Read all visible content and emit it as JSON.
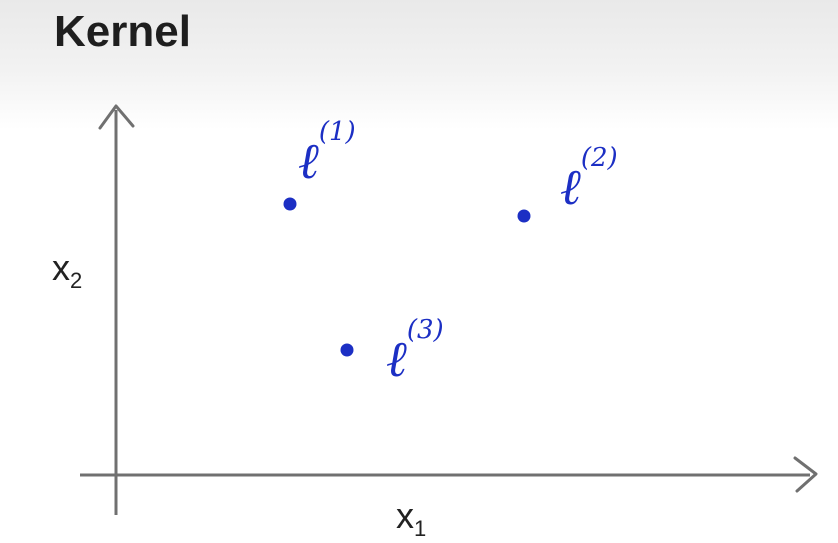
{
  "title": "Kernel",
  "axes": {
    "x_label": "x",
    "x_sub": "1",
    "y_label": "x",
    "y_sub": "2"
  },
  "landmarks": [
    {
      "letter": "ℓ",
      "superscript": "(1)"
    },
    {
      "letter": "ℓ",
      "superscript": "(2)"
    },
    {
      "letter": "ℓ",
      "superscript": "(3)"
    }
  ],
  "colors": {
    "ink": "#1c2fc4",
    "axis": "#707070",
    "title": "#1e1e1e"
  }
}
